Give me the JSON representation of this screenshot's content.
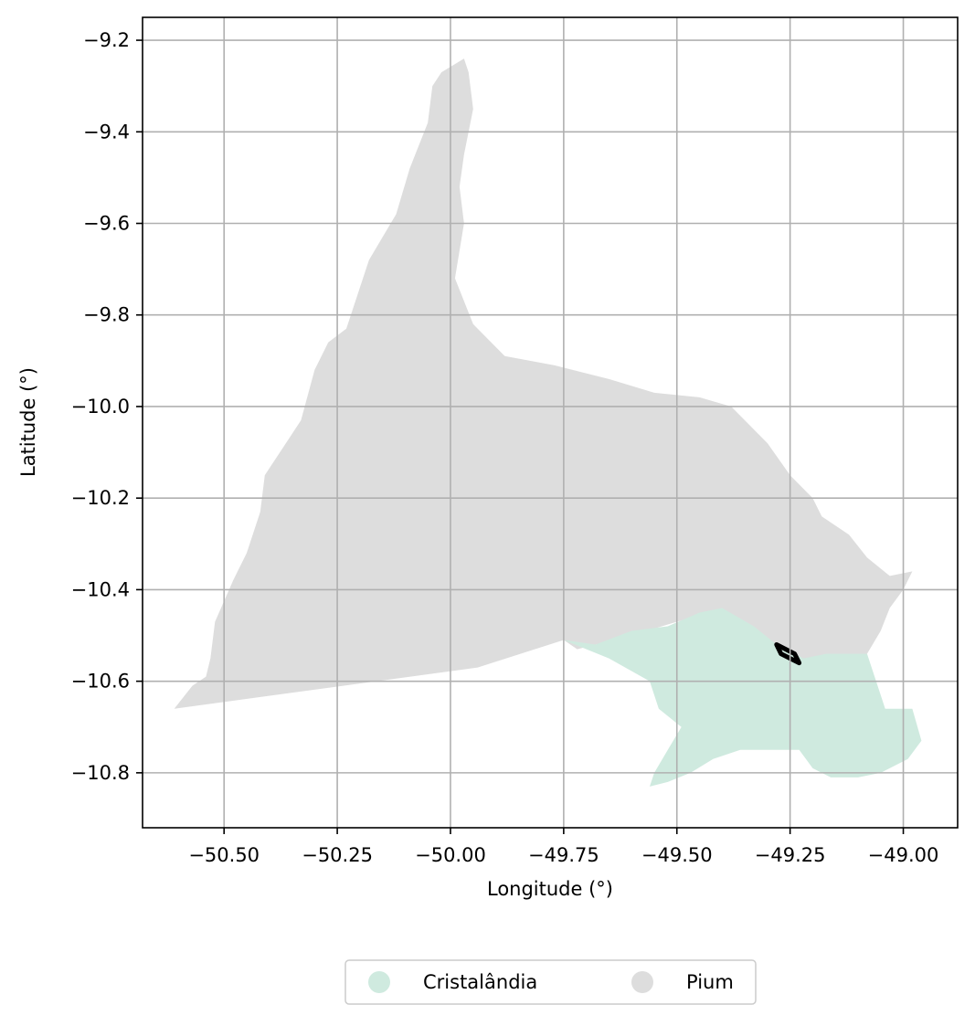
{
  "map": {
    "xlabel": "Longitude (°)",
    "ylabel": "Latitude (°)",
    "xlim": [
      -50.68,
      -48.88
    ],
    "ylim": [
      -10.92,
      -9.15
    ],
    "grid": true,
    "x_ticks": [
      {
        "value": -50.5,
        "label": "−50.50"
      },
      {
        "value": -50.25,
        "label": "−50.25"
      },
      {
        "value": -50.0,
        "label": "−50.00"
      },
      {
        "value": -49.75,
        "label": "−49.75"
      },
      {
        "value": -49.5,
        "label": "−49.50"
      },
      {
        "value": -49.25,
        "label": "−49.25"
      },
      {
        "value": -49.0,
        "label": "−49.00"
      }
    ],
    "y_ticks": [
      {
        "value": -9.2,
        "label": "−9.2"
      },
      {
        "value": -9.4,
        "label": "−9.4"
      },
      {
        "value": -9.6,
        "label": "−9.6"
      },
      {
        "value": -9.8,
        "label": "−9.8"
      },
      {
        "value": -10.0,
        "label": "−10.0"
      },
      {
        "value": -10.2,
        "label": "−10.2"
      },
      {
        "value": -10.4,
        "label": "−10.4"
      },
      {
        "value": -10.6,
        "label": "−10.6"
      },
      {
        "value": -10.8,
        "label": "−10.8"
      }
    ],
    "regions": [
      {
        "name": "Pium",
        "color": "#dddddd",
        "outline": [
          [
            -50.61,
            -10.66
          ],
          [
            -50.57,
            -10.61
          ],
          [
            -50.54,
            -10.59
          ],
          [
            -50.53,
            -10.55
          ],
          [
            -50.52,
            -10.47
          ],
          [
            -50.48,
            -10.38
          ],
          [
            -50.45,
            -10.32
          ],
          [
            -50.42,
            -10.23
          ],
          [
            -50.41,
            -10.15
          ],
          [
            -50.37,
            -10.09
          ],
          [
            -50.33,
            -10.03
          ],
          [
            -50.3,
            -9.92
          ],
          [
            -50.27,
            -9.86
          ],
          [
            -50.23,
            -9.83
          ],
          [
            -50.18,
            -9.68
          ],
          [
            -50.12,
            -9.58
          ],
          [
            -50.09,
            -9.48
          ],
          [
            -50.05,
            -9.38
          ],
          [
            -50.04,
            -9.3
          ],
          [
            -50.02,
            -9.27
          ],
          [
            -49.97,
            -9.24
          ],
          [
            -49.96,
            -9.27
          ],
          [
            -49.95,
            -9.35
          ],
          [
            -49.97,
            -9.45
          ],
          [
            -49.98,
            -9.52
          ],
          [
            -49.97,
            -9.6
          ],
          [
            -49.99,
            -9.72
          ],
          [
            -49.95,
            -9.82
          ],
          [
            -49.88,
            -9.89
          ],
          [
            -49.77,
            -9.91
          ],
          [
            -49.65,
            -9.94
          ],
          [
            -49.55,
            -9.97
          ],
          [
            -49.45,
            -9.98
          ],
          [
            -49.38,
            -10.0
          ],
          [
            -49.3,
            -10.08
          ],
          [
            -49.25,
            -10.15
          ],
          [
            -49.2,
            -10.2
          ],
          [
            -49.18,
            -10.24
          ],
          [
            -49.12,
            -10.28
          ],
          [
            -49.08,
            -10.33
          ],
          [
            -49.03,
            -10.37
          ],
          [
            -48.98,
            -10.36
          ],
          [
            -49.0,
            -10.4
          ],
          [
            -49.03,
            -10.44
          ],
          [
            -49.05,
            -10.49
          ],
          [
            -49.08,
            -10.54
          ],
          [
            -49.22,
            -10.57
          ],
          [
            -49.32,
            -10.5
          ],
          [
            -49.42,
            -10.45
          ],
          [
            -49.5,
            -10.47
          ],
          [
            -49.6,
            -10.5
          ],
          [
            -49.72,
            -10.53
          ],
          [
            -49.75,
            -10.51
          ],
          [
            -49.94,
            -10.57
          ],
          [
            -50.61,
            -10.66
          ]
        ]
      },
      {
        "name": "Cristalândia",
        "color": "#cfeadf",
        "outline": [
          [
            -49.75,
            -10.51
          ],
          [
            -49.68,
            -10.52
          ],
          [
            -49.6,
            -10.49
          ],
          [
            -49.52,
            -10.48
          ],
          [
            -49.45,
            -10.45
          ],
          [
            -49.4,
            -10.44
          ],
          [
            -49.33,
            -10.48
          ],
          [
            -49.28,
            -10.52
          ],
          [
            -49.22,
            -10.55
          ],
          [
            -49.17,
            -10.54
          ],
          [
            -49.08,
            -10.54
          ],
          [
            -49.06,
            -10.6
          ],
          [
            -49.04,
            -10.66
          ],
          [
            -48.98,
            -10.66
          ],
          [
            -48.96,
            -10.73
          ],
          [
            -48.99,
            -10.77
          ],
          [
            -49.05,
            -10.8
          ],
          [
            -49.1,
            -10.81
          ],
          [
            -49.16,
            -10.81
          ],
          [
            -49.2,
            -10.79
          ],
          [
            -49.23,
            -10.75
          ],
          [
            -49.3,
            -10.75
          ],
          [
            -49.36,
            -10.75
          ],
          [
            -49.42,
            -10.77
          ],
          [
            -49.47,
            -10.8
          ],
          [
            -49.52,
            -10.82
          ],
          [
            -49.56,
            -10.83
          ],
          [
            -49.55,
            -10.8
          ],
          [
            -49.52,
            -10.75
          ],
          [
            -49.49,
            -10.7
          ],
          [
            -49.54,
            -10.66
          ],
          [
            -49.56,
            -10.6
          ],
          [
            -49.65,
            -10.55
          ],
          [
            -49.75,
            -10.51
          ]
        ]
      }
    ],
    "marker_outline": [
      [
        -49.28,
        -10.52
      ],
      [
        -49.24,
        -10.54
      ],
      [
        -49.23,
        -10.56
      ],
      [
        -49.27,
        -10.54
      ],
      [
        -49.28,
        -10.52
      ]
    ],
    "legend": {
      "placement": "bottom-center",
      "entries": [
        {
          "label": "Cristalândia",
          "color": "#cfeadf"
        },
        {
          "label": "Pium",
          "color": "#dddddd"
        }
      ]
    }
  }
}
